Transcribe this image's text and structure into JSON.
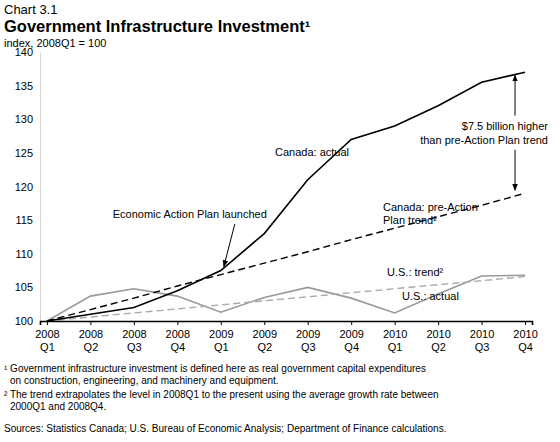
{
  "chart_data": {
    "type": "line",
    "chart_number": "Chart 3.1",
    "title": "Government Infrastructure Investment¹",
    "subtitle": "index, 2008Q1 = 100",
    "categories": [
      "2008 Q1",
      "2008 Q2",
      "2008 Q3",
      "2008 Q4",
      "2009 Q1",
      "2009 Q2",
      "2009 Q3",
      "2009 Q4",
      "2010 Q1",
      "2010 Q2",
      "2010 Q3",
      "2010 Q4"
    ],
    "series": [
      {
        "name": "Canada: actual",
        "color": "#000000",
        "line_style": "solid",
        "values": [
          100,
          101,
          102,
          104.5,
          107.5,
          113,
          121,
          127,
          129,
          132,
          135.5,
          137
        ]
      },
      {
        "name": "Canada: pre-Action Plan trend²",
        "color": "#000000",
        "line_style": "dashed",
        "values": [
          100,
          101.7,
          103.4,
          105.2,
          106.9,
          108.6,
          110.3,
          112.1,
          113.8,
          115.5,
          117.2,
          119
        ]
      },
      {
        "name": "U.S.: trend²",
        "color": "#aaaaaa",
        "line_style": "dashed",
        "values": [
          100,
          100.6,
          101.2,
          101.8,
          102.4,
          103,
          103.6,
          104.2,
          104.8,
          105.4,
          106,
          106.6
        ]
      },
      {
        "name": "U.S.: actual",
        "color": "#999999",
        "line_style": "solid",
        "values": [
          100,
          103.7,
          104.8,
          103.7,
          101.3,
          103.5,
          105,
          103.4,
          101.2,
          104,
          106.7,
          106.8
        ]
      }
    ],
    "ylim": [
      100,
      140
    ],
    "yticks": [
      100,
      105,
      110,
      115,
      120,
      125,
      130,
      135,
      140
    ],
    "grid": false,
    "annotations": [
      {
        "text": [
          "Economic Action Plan launched"
        ],
        "x": "2009 Q1"
      },
      {
        "text": [
          "$7.5 billion higher",
          "than pre-Action Plan trend"
        ],
        "x": "2010 Q4"
      }
    ],
    "footnotes": [
      [
        "¹ Government infrastructure investment is defined here as real government capital expenditures",
        "on construction, engineering, and machinery and equipment."
      ],
      [
        "² The trend extrapolates the level in 2008Q1 to the present using the average growth rate between",
        "2000Q1 and 2008Q4."
      ]
    ],
    "source": "Sources: Statistics Canada; U.S. Bureau of Economic Analysis; Department of Finance calculations."
  }
}
